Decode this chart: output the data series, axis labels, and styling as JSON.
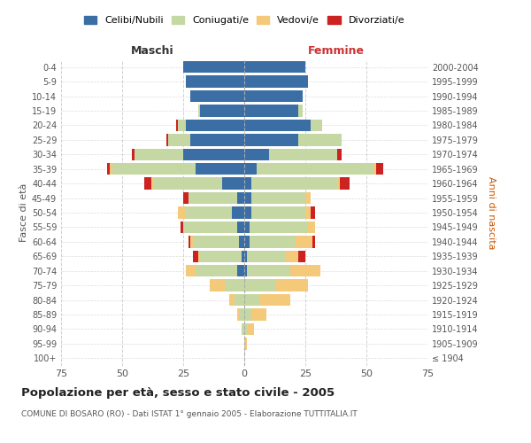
{
  "age_groups": [
    "100+",
    "95-99",
    "90-94",
    "85-89",
    "80-84",
    "75-79",
    "70-74",
    "65-69",
    "60-64",
    "55-59",
    "50-54",
    "45-49",
    "40-44",
    "35-39",
    "30-34",
    "25-29",
    "20-24",
    "15-19",
    "10-14",
    "5-9",
    "0-4"
  ],
  "birth_years": [
    "≤ 1904",
    "1905-1909",
    "1910-1914",
    "1915-1919",
    "1920-1924",
    "1925-1929",
    "1930-1934",
    "1935-1939",
    "1940-1944",
    "1945-1949",
    "1950-1954",
    "1955-1959",
    "1960-1964",
    "1965-1969",
    "1970-1974",
    "1975-1979",
    "1980-1984",
    "1985-1989",
    "1990-1994",
    "1995-1999",
    "2000-2004"
  ],
  "maschi": {
    "celibi": [
      0,
      0,
      0,
      0,
      0,
      0,
      3,
      1,
      2,
      3,
      5,
      3,
      9,
      20,
      25,
      22,
      24,
      18,
      22,
      24,
      25
    ],
    "coniugati": [
      0,
      0,
      1,
      2,
      4,
      8,
      17,
      17,
      19,
      22,
      19,
      20,
      28,
      34,
      20,
      9,
      3,
      1,
      0,
      0,
      0
    ],
    "vedovi": [
      0,
      0,
      0,
      1,
      2,
      6,
      4,
      1,
      1,
      0,
      3,
      0,
      1,
      1,
      0,
      0,
      0,
      0,
      0,
      0,
      0
    ],
    "divorziati": [
      0,
      0,
      0,
      0,
      0,
      0,
      0,
      2,
      1,
      1,
      0,
      2,
      3,
      1,
      1,
      1,
      1,
      0,
      0,
      0,
      0
    ]
  },
  "femmine": {
    "nubili": [
      0,
      0,
      0,
      0,
      0,
      0,
      1,
      1,
      2,
      2,
      3,
      3,
      3,
      5,
      10,
      22,
      27,
      22,
      24,
      26,
      25
    ],
    "coniugate": [
      0,
      0,
      1,
      3,
      6,
      13,
      18,
      16,
      19,
      24,
      22,
      22,
      35,
      48,
      28,
      18,
      5,
      2,
      0,
      0,
      0
    ],
    "vedove": [
      0,
      1,
      3,
      6,
      13,
      13,
      12,
      5,
      7,
      3,
      2,
      2,
      1,
      1,
      0,
      0,
      0,
      0,
      0,
      0,
      0
    ],
    "divorziate": [
      0,
      0,
      0,
      0,
      0,
      0,
      0,
      3,
      1,
      0,
      2,
      0,
      4,
      3,
      2,
      0,
      0,
      0,
      0,
      0,
      0
    ]
  },
  "colors": {
    "celibi": "#3a6ea5",
    "coniugati": "#c5d8a4",
    "vedovi": "#f5c97a",
    "divorziati": "#cc2222"
  },
  "title": "Popolazione per età, sesso e stato civile - 2005",
  "subtitle": "COMUNE DI BOSARO (RO) - Dati ISTAT 1° gennaio 2005 - Elaborazione TUTTITALIA.IT",
  "xlabel_left": "Maschi",
  "xlabel_right": "Femmine",
  "ylabel_left": "Fasce di età",
  "ylabel_right": "Anni di nascita",
  "xlim": 75,
  "background_color": "#ffffff",
  "grid_color": "#cccccc"
}
